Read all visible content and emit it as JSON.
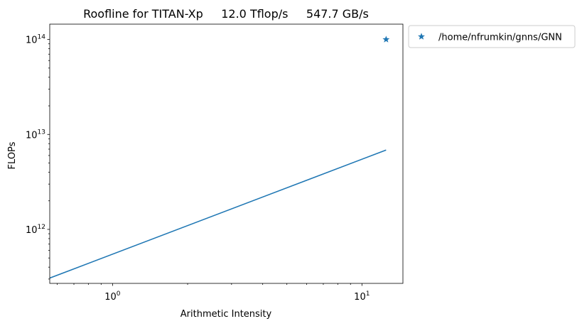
{
  "chart_data": {
    "type": "line",
    "title": "Roofline for TITAN-Xp     12.0 Tflop/s     547.7 GB/s",
    "xlabel": "Arithmetic Intensity",
    "ylabel": "FLOPs",
    "xscale": "log",
    "yscale": "log",
    "xlim": [
      0.56,
      14.6
    ],
    "ylim": [
      270000000000.0,
      145000000000000.0
    ],
    "x_ticks": [
      {
        "value": 1,
        "base": "10",
        "exp": "0"
      },
      {
        "value": 10,
        "base": "10",
        "exp": "1"
      }
    ],
    "y_ticks": [
      {
        "value": 1000000000000.0,
        "base": "10",
        "exp": "12"
      },
      {
        "value": 10000000000000.0,
        "base": "10",
        "exp": "13"
      },
      {
        "value": 100000000000000.0,
        "base": "10",
        "exp": "14"
      }
    ],
    "grid": false,
    "legend_position": "outside-top-right",
    "series": [
      {
        "type": "line",
        "color": "#1f77b4",
        "x": [
          0.56,
          12.5
        ],
        "y": [
          307000000000.0,
          6850000000000.0
        ]
      },
      {
        "type": "scatter",
        "marker": "star",
        "name": "/home/nfrumkin/gnns/GNN",
        "color": "#1f77b4",
        "x": [
          12.5
        ],
        "y": [
          100000000000000.0
        ]
      }
    ]
  }
}
